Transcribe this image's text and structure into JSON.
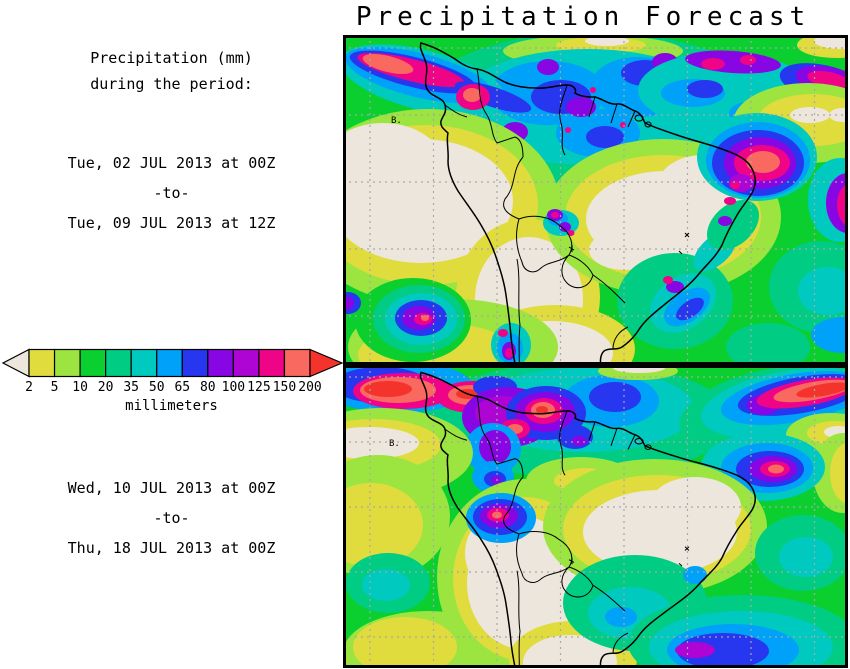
{
  "title": "Precipitation Forecast",
  "sidebar": {
    "heading_line1": "Precipitation (mm)",
    "heading_line2": "during the period:",
    "period1_start": "Tue, 02 JUL 2013 at 00Z",
    "period1_separator": "-to-",
    "period1_end": "Tue, 09 JUL 2013 at 12Z",
    "period2_start": "Wed, 10 JUL 2013 at 00Z",
    "period2_separator": "-to-",
    "period2_end": "Thu, 18 JUL 2013 at 00Z"
  },
  "legend": {
    "unit": "millimeters",
    "ticks": [
      "2",
      "5",
      "10",
      "20",
      "35",
      "50",
      "65",
      "80",
      "100",
      "125",
      "150",
      "200"
    ],
    "segment_color_keys": [
      "yellow",
      "yellowgreen",
      "green",
      "seagreen",
      "teal",
      "azure",
      "blue",
      "violet",
      "purple",
      "magenta",
      "salmon"
    ],
    "underflow_key": "cream",
    "overflow_key": "red"
  },
  "palette": {
    "cream": "#EDE6DC",
    "yellow": "#E0DC3E",
    "yellowgreen": "#9CE43F",
    "green": "#0ACF2E",
    "seagreen": "#00CC84",
    "teal": "#00C9C0",
    "azure": "#00A1F8",
    "blue": "#2736EF",
    "violet": "#8706E3",
    "purple": "#AE04D4",
    "magenta": "#EF0487",
    "salmon": "#F9695F",
    "red": "#F4342C",
    "coastline": "#000000",
    "grid": "#A8A8A8",
    "background": "#FFFFFF"
  },
  "map": {
    "region": "South America",
    "marker_label": "B."
  },
  "chart_data": {
    "type": "heatmap",
    "title": "Precipitation Forecast",
    "ylabel": "",
    "xlabel": "",
    "unit": "millimeters",
    "colorbar_boundaries_mm": [
      2,
      5,
      10,
      20,
      35,
      50,
      65,
      80,
      100,
      125,
      150,
      200
    ],
    "colorbar_open_ended": true,
    "legend_position": "left",
    "grid": "dashed lat/lon graticule",
    "panels": [
      {
        "position": "top",
        "region": "South America",
        "period_start": "Tue, 02 JUL 2013 at 00Z",
        "period_end": "Tue, 09 JUL 2013 at 12Z",
        "summary": "Accumulated precipitation; dry (<2mm) over Peru/Chile/Argentina and central-east Brazil; heavy (>100mm) over Colombia, NW Amazon, NE Brazil coast and SE Pacific storm"
      },
      {
        "position": "bottom",
        "region": "South America",
        "period_start": "Wed, 10 JUL 2013 at 00Z",
        "period_end": "Thu, 18 JUL 2013 at 00Z",
        "summary": "Accumulated precipitation; heavy maxima (>150mm) over Caribbean/Venezuela, tropical Atlantic, NE Brazil coast, Peru coast and SW Atlantic"
      }
    ]
  }
}
